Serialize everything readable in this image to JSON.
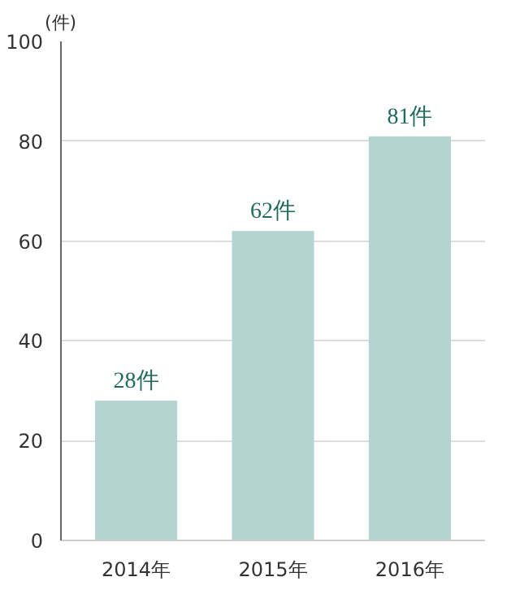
{
  "chart_data": {
    "type": "bar",
    "ylabel": "(件)",
    "categories": [
      "2014年",
      "2015年",
      "2016年"
    ],
    "values": [
      28,
      62,
      81
    ],
    "value_labels": [
      "28件",
      "62件",
      "81件"
    ],
    "color": "#b3d4cf",
    "ylim": [
      0,
      100
    ],
    "yticks": [
      0,
      20,
      40,
      60,
      80,
      100
    ],
    "grid": "y"
  }
}
